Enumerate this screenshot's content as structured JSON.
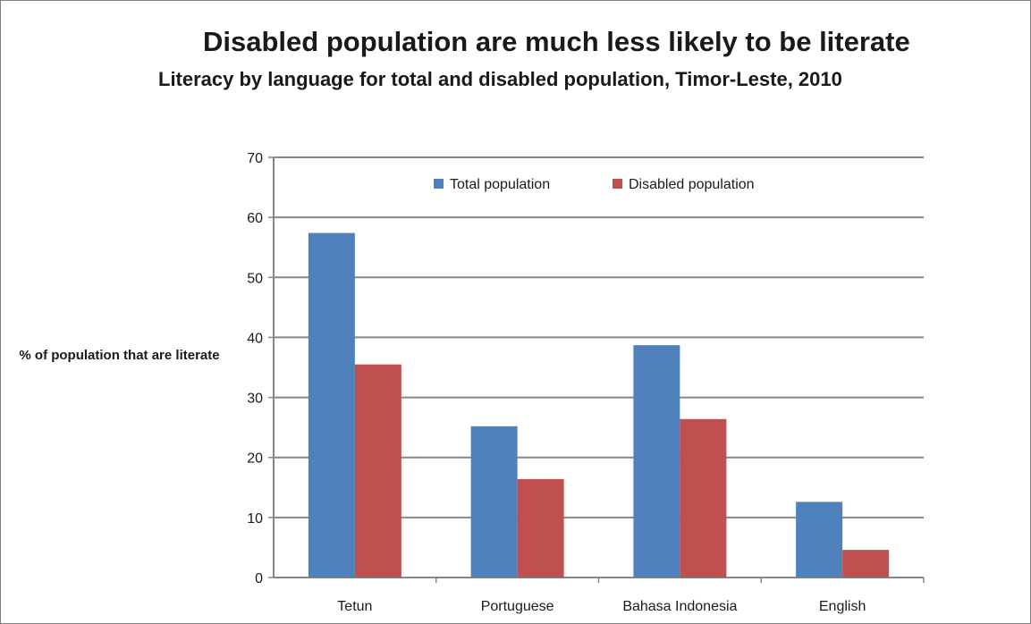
{
  "chart_data": {
    "type": "bar",
    "title": "Disabled population are much less likely to be literate",
    "subtitle": "Literacy by language for total and disabled population, Timor-Leste, 2010",
    "xlabel": "",
    "ylabel": "% of population that are literate",
    "categories": [
      "Tetun",
      "Portuguese",
      "Bahasa Indonesia",
      "English"
    ],
    "series": [
      {
        "name": "Total population",
        "color": "#4f81bd",
        "values": [
          57.4,
          25.2,
          38.7,
          12.6
        ]
      },
      {
        "name": "Disabled population",
        "color": "#c0504d",
        "values": [
          35.5,
          16.4,
          26.4,
          4.6
        ]
      }
    ],
    "ylim": [
      0,
      70
    ],
    "yticks": [
      0,
      10,
      20,
      30,
      40,
      50,
      60,
      70
    ],
    "grid": true,
    "legend": "top-center"
  }
}
